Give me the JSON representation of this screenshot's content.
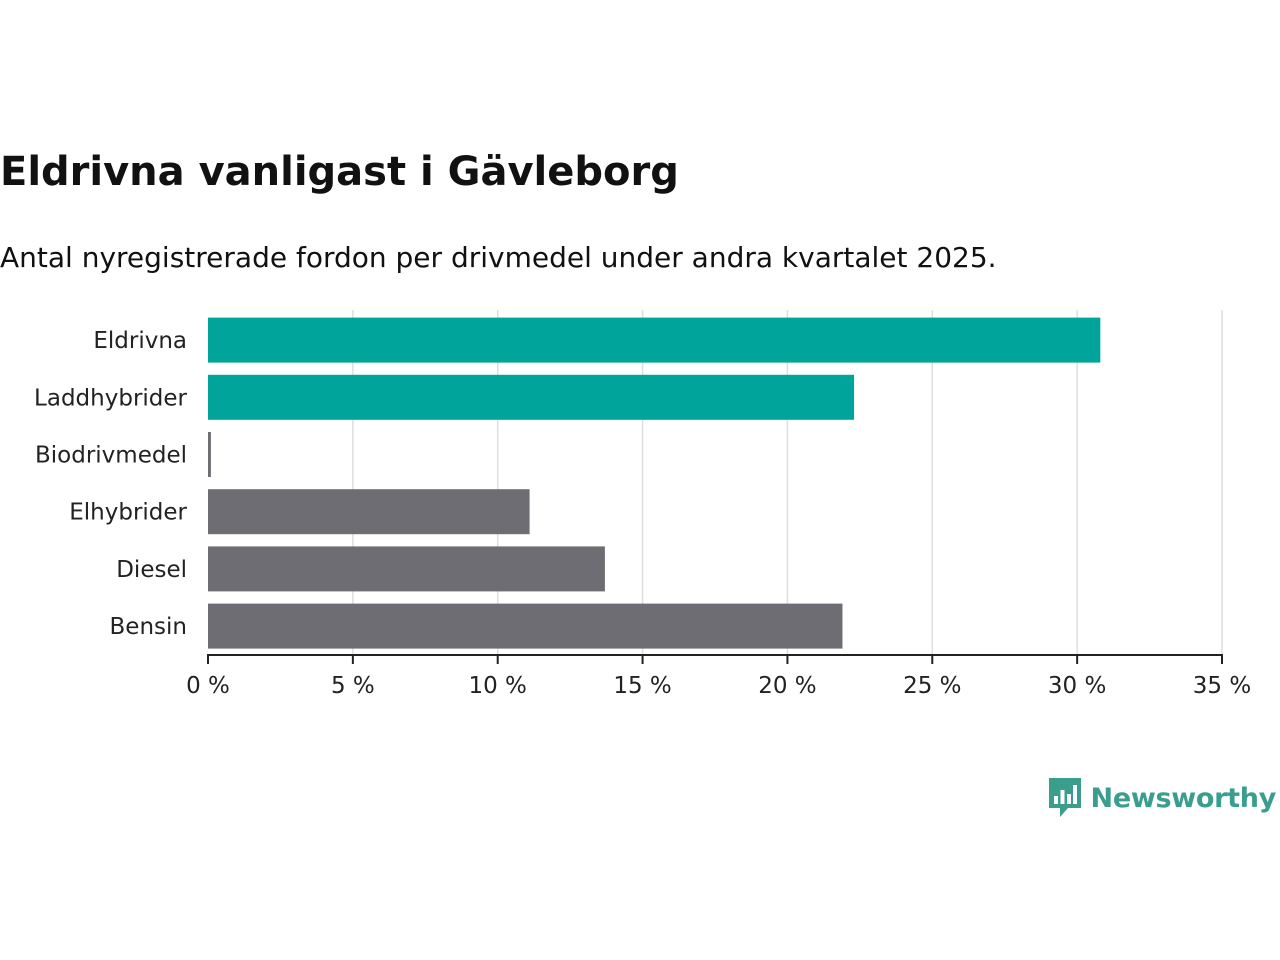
{
  "title": "Eldrivna vanligast i Gävleborg",
  "subtitle": "Antal nyregistrerade fordon per drivmedel under andra kvartalet 2025.",
  "brand": {
    "name": "Newsworthy",
    "icon": "bar-chart-speech-bubble-icon",
    "color": "#3a9e8f"
  },
  "chart_data": {
    "type": "bar",
    "orientation": "horizontal",
    "categories": [
      "Eldrivna",
      "Laddhybrider",
      "Biodrivmedel",
      "Elhybrider",
      "Diesel",
      "Bensin"
    ],
    "values": [
      30.8,
      22.3,
      0.1,
      11.1,
      13.7,
      21.9
    ],
    "colors": [
      "#00a49a",
      "#00a49a",
      "#6e6d73",
      "#6e6d73",
      "#6e6d73",
      "#6e6d73"
    ],
    "ticks": [
      "0 %",
      "5 %",
      "10 %",
      "15 %",
      "20 %",
      "25 %",
      "30 %",
      "35 %"
    ],
    "tick_values": [
      0,
      5,
      10,
      15,
      20,
      25,
      30,
      35
    ],
    "xlim": [
      0,
      35
    ],
    "grid": true
  }
}
